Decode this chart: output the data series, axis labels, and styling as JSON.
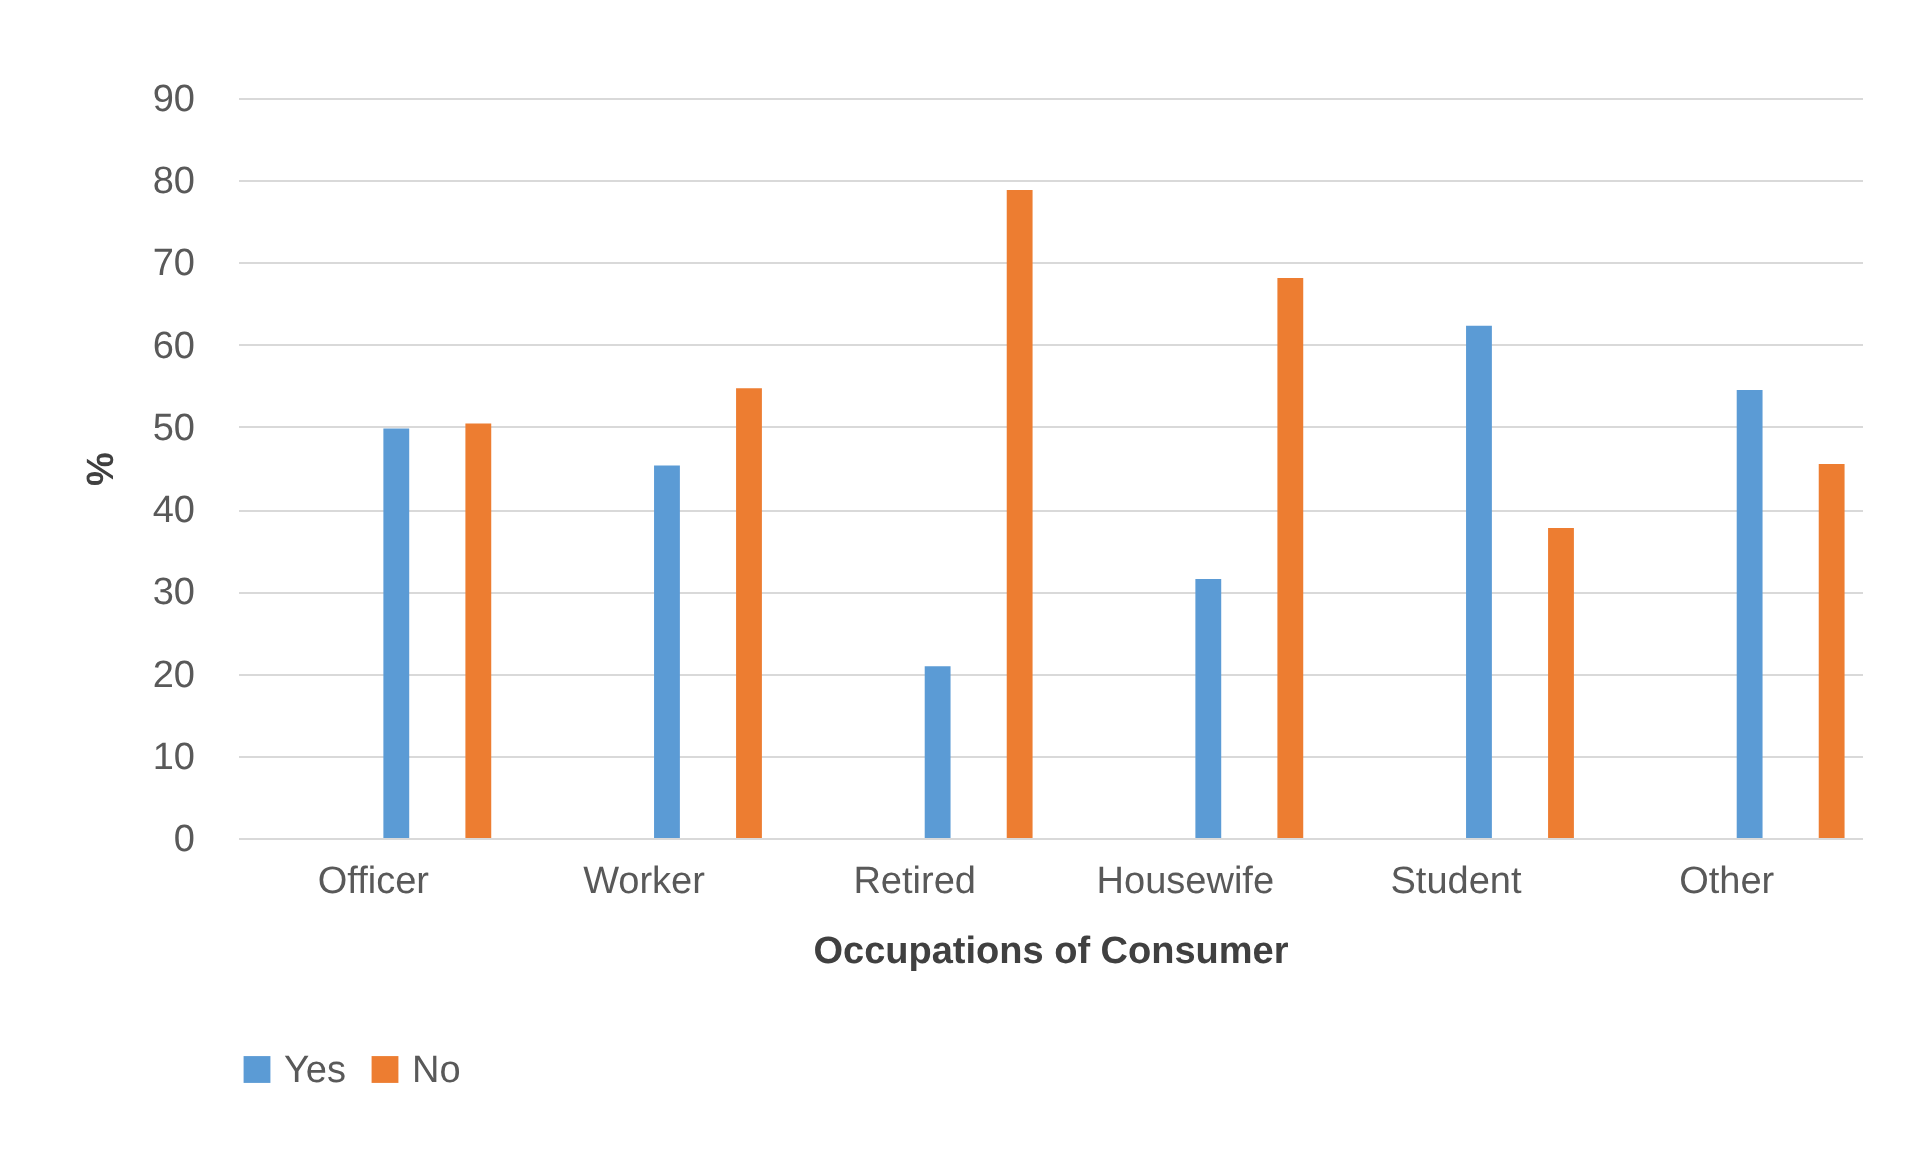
{
  "chart_data": {
    "type": "bar",
    "xlabel": "Occupations of Consumer",
    "ylabel": "%",
    "categories": [
      "Officer",
      "Worker",
      "Retired",
      "Housewife",
      "Student",
      "Other"
    ],
    "series": [
      {
        "name": "Yes",
        "color": "#5b9bd5",
        "values": [
          49.8,
          45.3,
          20.9,
          31.5,
          62.3,
          54.5
        ]
      },
      {
        "name": "No",
        "color": "#ed7d31",
        "values": [
          50.4,
          54.7,
          78.8,
          68.1,
          37.7,
          45.5
        ]
      }
    ],
    "ylim": [
      0,
      90
    ],
    "yticks": [
      0,
      10,
      20,
      30,
      40,
      50,
      60,
      70,
      80,
      90
    ],
    "grid": "y",
    "legend": "bottom"
  }
}
